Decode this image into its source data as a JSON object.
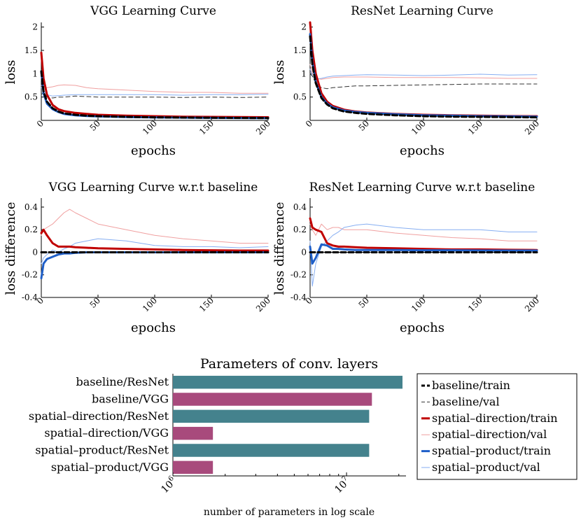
{
  "panels": [
    {
      "id": "vgg_curve",
      "title": "VGG Learning Curve",
      "xlabel": "epochs",
      "ylabel": "loss",
      "xlim": [
        0,
        200
      ],
      "ylim": [
        0.0,
        2.1
      ],
      "xticks": [
        0,
        50,
        100,
        150,
        200
      ],
      "yticks": [
        0.5,
        1,
        1.5,
        2
      ],
      "ytick_labels": [
        "0.5",
        "1",
        "1.5",
        "2"
      ]
    },
    {
      "id": "resnet_curve",
      "title": "ResNet Learning Curve",
      "xlabel": "epochs",
      "ylabel": "loss",
      "xlim": [
        0,
        200
      ],
      "ylim": [
        0.0,
        2.1
      ],
      "xticks": [
        0,
        50,
        100,
        150,
        200
      ],
      "yticks": [
        0.5,
        1,
        1.5,
        2
      ],
      "ytick_labels": [
        "0.5",
        "1",
        "1.5",
        "2"
      ]
    },
    {
      "id": "vgg_diff",
      "title": "VGG Learning Curve w.r.t baseline",
      "xlabel": "epochs",
      "ylabel": "loss difference",
      "xlim": [
        0,
        200
      ],
      "ylim": [
        -0.4,
        0.48
      ],
      "xticks": [
        0,
        50,
        100,
        150,
        200
      ],
      "yticks": [
        -0.4,
        -0.2,
        0,
        0.2,
        0.4
      ],
      "ytick_labels": [
        "-0.4",
        "-0.2",
        "0",
        "0.2",
        "0.4"
      ]
    },
    {
      "id": "resnet_diff",
      "title": "ResNet Learning Curve w.r.t baseline",
      "xlabel": "epochs",
      "ylabel": "loss difference",
      "xlim": [
        0,
        200
      ],
      "ylim": [
        -0.4,
        0.48
      ],
      "xticks": [
        0,
        50,
        100,
        150,
        200
      ],
      "yticks": [
        -0.4,
        -0.2,
        0,
        0.2,
        0.4
      ],
      "ytick_labels": [
        "-0.4",
        "-0.2",
        "0",
        "0.2",
        "0.4"
      ]
    }
  ],
  "legend": {
    "position": "bottom-right",
    "entries": [
      {
        "label": "baseline/train",
        "color": "#000000",
        "style": "dashed-thick"
      },
      {
        "label": "baseline/val",
        "color": "#333333",
        "style": "dashed-thin"
      },
      {
        "label": "spatial–direction/train",
        "color": "#c00000",
        "style": "solid-thick"
      },
      {
        "label": "spatial–direction/val",
        "color": "#f0a0a0",
        "style": "solid-thin"
      },
      {
        "label": "spatial–product/train",
        "color": "#1f5fc8",
        "style": "solid-thick"
      },
      {
        "label": "spatial–product/val",
        "color": "#86aef2",
        "style": "solid-thin"
      }
    ]
  },
  "bar_chart": {
    "title": "Parameters of conv. layers",
    "xlabel": "number of parameters in log scale",
    "xtick_labels": [
      {
        "base": "10",
        "exp": "6"
      },
      {
        "base": "10",
        "exp": "7"
      }
    ]
  },
  "chart_data": [
    {
      "type": "line",
      "title": "VGG Learning Curve",
      "xlabel": "epochs",
      "ylabel": "loss",
      "xlim": [
        0,
        200
      ],
      "ylim": [
        0,
        2.1
      ],
      "x": [
        0,
        2,
        5,
        10,
        15,
        20,
        30,
        40,
        50,
        75,
        100,
        125,
        150,
        175,
        200
      ],
      "series": [
        {
          "name": "baseline/train",
          "values": [
            1.05,
            0.62,
            0.4,
            0.26,
            0.19,
            0.15,
            0.12,
            0.1,
            0.09,
            0.075,
            0.065,
            0.06,
            0.055,
            0.052,
            0.05
          ]
        },
        {
          "name": "baseline/val",
          "values": [
            0.55,
            0.6,
            0.5,
            0.48,
            0.5,
            0.5,
            0.52,
            0.51,
            0.5,
            0.5,
            0.5,
            0.49,
            0.5,
            0.49,
            0.5
          ]
        },
        {
          "name": "spatial–direction/train",
          "values": [
            1.45,
            0.9,
            0.55,
            0.33,
            0.24,
            0.2,
            0.16,
            0.14,
            0.12,
            0.1,
            0.09,
            0.08,
            0.075,
            0.07,
            0.068
          ]
        },
        {
          "name": "spatial–direction/val",
          "values": [
            0.75,
            0.72,
            0.7,
            0.72,
            0.75,
            0.76,
            0.75,
            0.7,
            0.68,
            0.65,
            0.62,
            0.6,
            0.6,
            0.58,
            0.58
          ]
        },
        {
          "name": "spatial–product/train",
          "values": [
            1.05,
            0.58,
            0.36,
            0.24,
            0.18,
            0.14,
            0.11,
            0.095,
            0.085,
            0.07,
            0.063,
            0.058,
            0.054,
            0.051,
            0.05
          ]
        },
        {
          "name": "spatial–product/val",
          "values": [
            0.7,
            0.65,
            0.55,
            0.52,
            0.53,
            0.54,
            0.55,
            0.55,
            0.55,
            0.55,
            0.55,
            0.54,
            0.55,
            0.55,
            0.56
          ]
        }
      ]
    },
    {
      "type": "line",
      "title": "ResNet Learning Curve",
      "xlabel": "epochs",
      "ylabel": "loss",
      "xlim": [
        0,
        200
      ],
      "ylim": [
        0,
        2.1
      ],
      "x": [
        0,
        2,
        5,
        10,
        15,
        20,
        30,
        40,
        50,
        75,
        100,
        125,
        150,
        175,
        200
      ],
      "series": [
        {
          "name": "baseline/train",
          "values": [
            1.8,
            1.2,
            0.8,
            0.48,
            0.34,
            0.26,
            0.19,
            0.16,
            0.14,
            0.11,
            0.09,
            0.08,
            0.075,
            0.07,
            0.065
          ]
        },
        {
          "name": "baseline/val",
          "values": [
            1.0,
            0.95,
            0.8,
            0.7,
            0.68,
            0.7,
            0.72,
            0.74,
            0.74,
            0.75,
            0.76,
            0.77,
            0.78,
            0.78,
            0.78
          ]
        },
        {
          "name": "spatial–direction/train",
          "values": [
            2.1,
            1.5,
            1.0,
            0.58,
            0.4,
            0.31,
            0.23,
            0.19,
            0.17,
            0.14,
            0.12,
            0.11,
            0.1,
            0.095,
            0.09
          ]
        },
        {
          "name": "spatial–direction/val",
          "values": [
            1.2,
            1.0,
            0.9,
            0.88,
            0.9,
            0.92,
            0.93,
            0.93,
            0.93,
            0.92,
            0.92,
            0.92,
            0.91,
            0.9,
            0.9
          ]
        },
        {
          "name": "spatial–product/train",
          "values": [
            1.85,
            1.25,
            0.82,
            0.5,
            0.36,
            0.28,
            0.21,
            0.18,
            0.16,
            0.13,
            0.11,
            0.1,
            0.09,
            0.085,
            0.08
          ]
        },
        {
          "name": "spatial–product/val",
          "values": [
            1.1,
            0.95,
            0.88,
            0.9,
            0.93,
            0.95,
            0.96,
            0.97,
            0.98,
            0.97,
            0.96,
            0.97,
            0.99,
            0.97,
            0.98
          ]
        }
      ]
    },
    {
      "type": "line",
      "title": "VGG Learning Curve w.r.t baseline",
      "xlabel": "epochs",
      "ylabel": "loss difference",
      "xlim": [
        0,
        200
      ],
      "ylim": [
        -0.4,
        0.48
      ],
      "x": [
        0,
        2,
        5,
        10,
        15,
        20,
        25,
        30,
        40,
        50,
        75,
        100,
        125,
        150,
        175,
        200
      ],
      "series": [
        {
          "name": "baseline/train",
          "values": [
            0,
            0,
            0,
            0,
            0,
            0,
            0,
            0,
            0,
            0,
            0,
            0,
            0,
            0,
            0,
            0
          ]
        },
        {
          "name": "baseline/val",
          "values": [
            0,
            0,
            0,
            0,
            0,
            0,
            0,
            0,
            0,
            0,
            0,
            0,
            0,
            0,
            0,
            0
          ]
        },
        {
          "name": "spatial–direction/train",
          "values": [
            0.17,
            0.2,
            0.15,
            0.08,
            0.05,
            0.05,
            0.05,
            0.045,
            0.04,
            0.035,
            0.03,
            0.025,
            0.02,
            0.018,
            0.015,
            0.015
          ]
        },
        {
          "name": "spatial–direction/val",
          "values": [
            0.15,
            0.2,
            0.22,
            0.25,
            0.3,
            0.35,
            0.38,
            0.35,
            0.3,
            0.25,
            0.2,
            0.15,
            0.12,
            0.1,
            0.08,
            0.08
          ]
        },
        {
          "name": "spatial–product/train",
          "values": [
            -0.23,
            -0.1,
            -0.06,
            -0.04,
            -0.02,
            -0.01,
            -0.01,
            -0.005,
            0,
            0,
            0,
            0,
            0,
            0,
            0,
            0
          ]
        },
        {
          "name": "spatial–product/val",
          "values": [
            -0.1,
            -0.05,
            -0.02,
            0.02,
            0.0,
            0.03,
            0.05,
            0.08,
            0.1,
            0.12,
            0.1,
            0.06,
            0.05,
            0.05,
            0.04,
            0.05
          ]
        }
      ]
    },
    {
      "type": "line",
      "title": "ResNet Learning Curve w.r.t baseline",
      "xlabel": "epochs",
      "ylabel": "loss difference",
      "xlim": [
        0,
        200
      ],
      "ylim": [
        -0.4,
        0.48
      ],
      "x": [
        0,
        2,
        5,
        10,
        15,
        20,
        25,
        30,
        40,
        50,
        75,
        100,
        125,
        150,
        175,
        200
      ],
      "series": [
        {
          "name": "baseline/train",
          "values": [
            0,
            0,
            0,
            0,
            0,
            0,
            0,
            0,
            0,
            0,
            0,
            0,
            0,
            0,
            0,
            0
          ]
        },
        {
          "name": "baseline/val",
          "values": [
            0,
            0,
            0,
            0,
            0,
            0,
            0,
            0,
            0,
            0,
            0,
            0,
            0,
            0,
            0,
            0
          ]
        },
        {
          "name": "spatial–direction/train",
          "values": [
            0.3,
            0.22,
            0.2,
            0.18,
            0.08,
            0.06,
            0.05,
            0.05,
            0.045,
            0.04,
            0.035,
            0.03,
            0.025,
            0.025,
            0.022,
            0.02
          ]
        },
        {
          "name": "spatial–direction/val",
          "values": [
            0.25,
            0.2,
            0.15,
            0.25,
            0.2,
            0.22,
            0.22,
            0.2,
            0.2,
            0.2,
            0.17,
            0.15,
            0.13,
            0.12,
            0.1,
            0.1
          ]
        },
        {
          "name": "spatial–product/train",
          "values": [
            0.05,
            -0.1,
            -0.05,
            0.07,
            0.06,
            0.03,
            0.03,
            0.025,
            0.02,
            0.02,
            0.02,
            0.018,
            0.018,
            0.016,
            0.015,
            0.015
          ]
        },
        {
          "name": "spatial–product/val",
          "values": [
            0.1,
            -0.3,
            -0.1,
            0.05,
            0.1,
            0.15,
            0.18,
            0.22,
            0.24,
            0.25,
            0.22,
            0.2,
            0.2,
            0.2,
            0.18,
            0.18
          ]
        }
      ]
    },
    {
      "type": "bar",
      "orientation": "horizontal",
      "title": "Parameters of conv. layers",
      "xlabel": "number of parameters in log scale",
      "xscale": "log",
      "xlim": [
        1000000,
        22000000
      ],
      "categories": [
        "baseline/ResNet",
        "baseline/VGG",
        "spatial–direction/ResNet",
        "spatial–direction/VGG",
        "spatial–product/ResNet",
        "spatial–product/VGG"
      ],
      "values": [
        21000000,
        14000000,
        13500000,
        1700000,
        13500000,
        1700000
      ],
      "colors": [
        "#44828d",
        "#a84a7c",
        "#44828d",
        "#a84a7c",
        "#44828d",
        "#a84a7c"
      ]
    }
  ]
}
